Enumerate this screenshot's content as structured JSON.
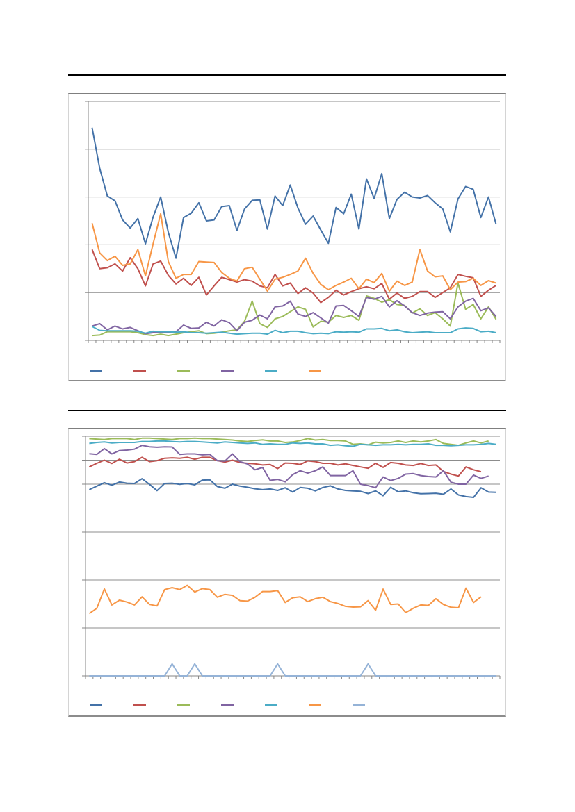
{
  "chart_data": [
    {
      "type": "line",
      "ylim": [
        0,
        5
      ],
      "grid": true,
      "legend_position": "bottom-left",
      "series": [
        {
          "color": "#4472a8",
          "values": [
            4.45,
            3.6,
            3.02,
            2.92,
            2.52,
            2.35,
            2.55,
            2.02,
            2.58,
            3.0,
            2.26,
            1.72,
            2.57,
            2.66,
            2.88,
            2.5,
            2.52,
            2.8,
            2.82,
            2.3,
            2.75,
            2.93,
            2.94,
            2.33,
            3.02,
            2.82,
            3.25,
            2.77,
            2.43,
            2.6,
            2.31,
            2.03,
            2.78,
            2.65,
            3.06,
            2.33,
            3.38,
            2.97,
            3.49,
            2.55,
            2.95,
            3.1,
            3.0,
            2.98,
            3.03,
            2.88,
            2.75,
            2.27,
            2.96,
            3.22,
            3.16,
            2.57,
            3.0,
            2.43
          ]
        },
        {
          "color": "#c0504d",
          "values": [
            1.9,
            1.5,
            1.52,
            1.6,
            1.45,
            1.73,
            1.5,
            1.14,
            1.6,
            1.66,
            1.36,
            1.18,
            1.3,
            1.15,
            1.32,
            0.95,
            1.14,
            1.32,
            1.27,
            1.22,
            1.27,
            1.24,
            1.14,
            1.1,
            1.38,
            1.14,
            1.2,
            0.98,
            1.1,
            0.99,
            0.79,
            0.9,
            1.05,
            0.95,
            1.02,
            1.08,
            1.12,
            1.08,
            1.19,
            0.86,
            0.99,
            0.88,
            0.92,
            1.02,
            1.02,
            0.9,
            1.0,
            1.1,
            1.38,
            1.34,
            1.31,
            0.92,
            1.05,
            1.15
          ]
        },
        {
          "color": "#9bbb59",
          "values": [
            0.1,
            0.11,
            0.18,
            0.18,
            0.18,
            0.18,
            0.16,
            0.12,
            0.1,
            0.13,
            0.1,
            0.13,
            0.16,
            0.18,
            0.2,
            0.14,
            0.15,
            0.17,
            0.2,
            0.22,
            0.4,
            0.82,
            0.35,
            0.27,
            0.45,
            0.5,
            0.6,
            0.7,
            0.65,
            0.28,
            0.4,
            0.38,
            0.52,
            0.48,
            0.52,
            0.42,
            0.93,
            0.88,
            0.8,
            0.85,
            0.75,
            0.73,
            0.57,
            0.66,
            0.52,
            0.58,
            0.45,
            0.3,
            1.2,
            0.65,
            0.75,
            0.45,
            0.7,
            0.44
          ]
        },
        {
          "color": "#8064a2",
          "values": [
            0.3,
            0.35,
            0.22,
            0.3,
            0.24,
            0.27,
            0.2,
            0.14,
            0.16,
            0.17,
            0.17,
            0.18,
            0.32,
            0.25,
            0.26,
            0.38,
            0.3,
            0.43,
            0.37,
            0.2,
            0.38,
            0.42,
            0.53,
            0.45,
            0.7,
            0.72,
            0.82,
            0.55,
            0.5,
            0.58,
            0.47,
            0.36,
            0.72,
            0.73,
            0.62,
            0.5,
            0.9,
            0.86,
            0.92,
            0.7,
            0.83,
            0.72,
            0.58,
            0.52,
            0.57,
            0.59,
            0.6,
            0.45,
            0.7,
            0.82,
            0.88,
            0.62,
            0.68,
            0.5
          ]
        },
        {
          "color": "#4bacc6",
          "values": [
            0.29,
            0.21,
            0.2,
            0.2,
            0.2,
            0.2,
            0.19,
            0.15,
            0.19,
            0.18,
            0.18,
            0.17,
            0.18,
            0.16,
            0.16,
            0.15,
            0.16,
            0.17,
            0.15,
            0.13,
            0.14,
            0.15,
            0.15,
            0.13,
            0.21,
            0.16,
            0.19,
            0.19,
            0.16,
            0.14,
            0.15,
            0.14,
            0.18,
            0.17,
            0.18,
            0.17,
            0.24,
            0.24,
            0.25,
            0.2,
            0.22,
            0.18,
            0.16,
            0.17,
            0.18,
            0.16,
            0.16,
            0.16,
            0.24,
            0.26,
            0.25,
            0.18,
            0.19,
            0.16
          ]
        },
        {
          "color": "#f79646",
          "values": [
            2.45,
            1.83,
            1.67,
            1.76,
            1.57,
            1.6,
            1.9,
            1.35,
            2.02,
            2.65,
            1.65,
            1.3,
            1.38,
            1.38,
            1.65,
            1.64,
            1.63,
            1.42,
            1.3,
            1.24,
            1.5,
            1.53,
            1.28,
            1.03,
            1.28,
            1.32,
            1.38,
            1.45,
            1.72,
            1.4,
            1.17,
            1.06,
            1.15,
            1.22,
            1.3,
            1.08,
            1.28,
            1.21,
            1.4,
            1.03,
            1.24,
            1.15,
            1.22,
            1.9,
            1.45,
            1.33,
            1.35,
            1.06,
            1.22,
            1.23,
            1.3,
            1.15,
            1.25,
            1.2
          ]
        }
      ]
    },
    {
      "type": "line",
      "ylim": [
        0,
        10
      ],
      "grid": true,
      "legend_position": "bottom-left",
      "series": [
        {
          "color": "#4472a8",
          "values": [
            7.77,
            7.92,
            8.06,
            7.96,
            8.09,
            8.04,
            8.03,
            8.23,
            7.99,
            7.73,
            8.03,
            8.04,
            7.99,
            8.03,
            7.97,
            8.17,
            8.18,
            7.9,
            7.83,
            8.0,
            7.92,
            7.87,
            7.81,
            7.77,
            7.8,
            7.74,
            7.85,
            7.67,
            7.86,
            7.83,
            7.72,
            7.86,
            7.93,
            7.8,
            7.74,
            7.72,
            7.7,
            7.61,
            7.72,
            7.52,
            7.87,
            7.68,
            7.72,
            7.64,
            7.6,
            7.61,
            7.62,
            7.58,
            7.8,
            7.55,
            7.48,
            7.45,
            7.85,
            7.67,
            7.66
          ]
        },
        {
          "color": "#c0504d",
          "values": [
            8.72,
            8.87,
            9.0,
            8.86,
            9.04,
            8.88,
            8.94,
            9.12,
            8.94,
            8.98,
            9.08,
            9.1,
            9.08,
            9.12,
            9.04,
            9.12,
            9.12,
            8.98,
            8.92,
            9.0,
            8.9,
            8.87,
            8.85,
            8.8,
            8.82,
            8.65,
            8.88,
            8.87,
            8.82,
            8.97,
            8.94,
            8.87,
            8.87,
            8.8,
            8.85,
            8.78,
            8.72,
            8.66,
            8.87,
            8.7,
            8.9,
            8.87,
            8.8,
            8.78,
            8.86,
            8.78,
            8.8,
            8.53,
            8.42,
            8.34,
            8.72,
            8.6,
            8.52
          ]
        },
        {
          "color": "#9bbb59",
          "values": [
            9.9,
            9.88,
            9.86,
            9.9,
            9.9,
            9.9,
            9.86,
            9.92,
            9.92,
            9.9,
            9.88,
            9.86,
            9.9,
            9.9,
            9.92,
            9.9,
            9.9,
            9.88,
            9.86,
            9.84,
            9.8,
            9.78,
            9.82,
            9.85,
            9.8,
            9.8,
            9.74,
            9.76,
            9.82,
            9.9,
            9.84,
            9.86,
            9.82,
            9.82,
            9.8,
            9.66,
            9.68,
            9.64,
            9.75,
            9.72,
            9.74,
            9.8,
            9.74,
            9.8,
            9.76,
            9.8,
            9.86,
            9.7,
            9.66,
            9.62,
            9.72,
            9.8,
            9.72,
            9.8
          ]
        },
        {
          "color": "#8064a2",
          "values": [
            9.27,
            9.24,
            9.48,
            9.26,
            9.4,
            9.42,
            9.46,
            9.62,
            9.56,
            9.54,
            9.56,
            9.55,
            9.24,
            9.26,
            9.26,
            9.22,
            9.24,
            8.98,
            8.96,
            9.26,
            8.94,
            8.84,
            8.6,
            8.7,
            8.16,
            8.2,
            8.1,
            8.4,
            8.56,
            8.46,
            8.56,
            8.72,
            8.36,
            8.36,
            8.36,
            8.56,
            8.0,
            7.94,
            7.85,
            8.3,
            8.15,
            8.24,
            8.42,
            8.44,
            8.36,
            8.32,
            8.3,
            8.56,
            8.08,
            8.0,
            8.0,
            8.38,
            8.24,
            8.34
          ]
        },
        {
          "color": "#4bacc6",
          "values": [
            9.7,
            9.74,
            9.76,
            9.72,
            9.74,
            9.74,
            9.74,
            9.78,
            9.78,
            9.8,
            9.8,
            9.78,
            9.76,
            9.78,
            9.78,
            9.76,
            9.74,
            9.72,
            9.76,
            9.74,
            9.72,
            9.7,
            9.72,
            9.66,
            9.68,
            9.66,
            9.66,
            9.72,
            9.7,
            9.72,
            9.68,
            9.68,
            9.62,
            9.64,
            9.6,
            9.58,
            9.66,
            9.64,
            9.62,
            9.64,
            9.64,
            9.66,
            9.64,
            9.66,
            9.66,
            9.68,
            9.62,
            9.62,
            9.6,
            9.62,
            9.64,
            9.64,
            9.66,
            9.7,
            9.66
          ]
        },
        {
          "color": "#f79646",
          "values": [
            2.6,
            2.82,
            3.63,
            2.96,
            3.16,
            3.08,
            2.96,
            3.3,
            2.98,
            2.92,
            3.6,
            3.68,
            3.6,
            3.78,
            3.5,
            3.64,
            3.6,
            3.28,
            3.4,
            3.36,
            3.14,
            3.12,
            3.28,
            3.52,
            3.52,
            3.56,
            3.06,
            3.26,
            3.3,
            3.1,
            3.22,
            3.28,
            3.1,
            3.02,
            2.9,
            2.87,
            2.88,
            3.14,
            2.74,
            3.62,
            2.98,
            3.0,
            2.64,
            2.82,
            2.96,
            2.94,
            3.22,
            2.98,
            2.86,
            2.84,
            3.66,
            3.06,
            3.3
          ]
        },
        {
          "color": "#95b3d7",
          "values": [
            0,
            0,
            0,
            0,
            0,
            0,
            0,
            0,
            0,
            0,
            0,
            0.5,
            0,
            0,
            0.5,
            0,
            0,
            0,
            0,
            0,
            0,
            0,
            0,
            0,
            0,
            0.5,
            0,
            0,
            0,
            0,
            0,
            0,
            0,
            0,
            0,
            0,
            0,
            0.5,
            0,
            0,
            0,
            0,
            0,
            0,
            0,
            0,
            0,
            0,
            0,
            0,
            0,
            0,
            0,
            0,
            0
          ]
        }
      ]
    }
  ]
}
